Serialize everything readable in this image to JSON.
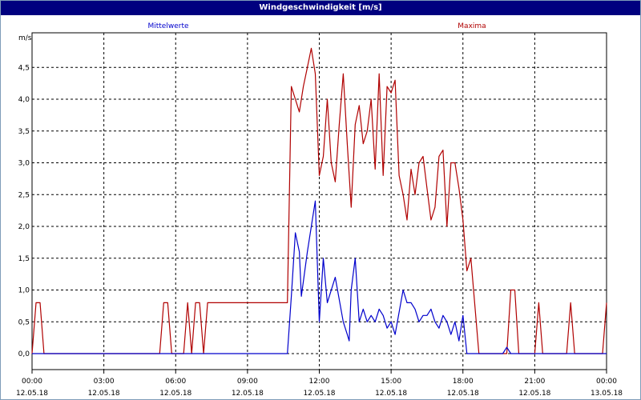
{
  "window": {
    "title": "Windgeschwindigkeit [m/s]"
  },
  "chart_data": {
    "type": "line",
    "unit_label": "m/s",
    "ylim": [
      0,
      5
    ],
    "yticks": [
      {
        "value": 0.0,
        "label": "0,0"
      },
      {
        "value": 0.5,
        "label": "0,5"
      },
      {
        "value": 1.0,
        "label": "1,0"
      },
      {
        "value": 1.5,
        "label": "1,5"
      },
      {
        "value": 2.0,
        "label": "2,0"
      },
      {
        "value": 2.5,
        "label": "2,5"
      },
      {
        "value": 3.0,
        "label": "3,0"
      },
      {
        "value": 3.5,
        "label": "3,5"
      },
      {
        "value": 4.0,
        "label": "4,0"
      },
      {
        "value": 4.5,
        "label": "4,5"
      }
    ],
    "xlim": [
      "12.05.18 00:00",
      "13.05.18 00:00"
    ],
    "xticks": [
      {
        "time": "00:00",
        "date": "12.05.18"
      },
      {
        "time": "03:00",
        "date": "12.05.18"
      },
      {
        "time": "06:00",
        "date": "12.05.18"
      },
      {
        "time": "09:00",
        "date": "12.05.18"
      },
      {
        "time": "12:00",
        "date": "12.05.18"
      },
      {
        "time": "15:00",
        "date": "12.05.18"
      },
      {
        "time": "18:00",
        "date": "12.05.18"
      },
      {
        "time": "21:00",
        "date": "12.05.18"
      },
      {
        "time": "00:00",
        "date": "13.05.18"
      }
    ],
    "grid": true,
    "series": [
      {
        "name": "Mittelwerte",
        "color": "#0000cc",
        "points": [
          [
            "00:00",
            0
          ],
          [
            "10:40",
            0
          ],
          [
            "10:50",
            0.9
          ],
          [
            "11:00",
            1.9
          ],
          [
            "11:10",
            1.6
          ],
          [
            "11:15",
            0.9
          ],
          [
            "11:30",
            1.6
          ],
          [
            "11:45",
            2.2
          ],
          [
            "11:50",
            2.4
          ],
          [
            "12:00",
            0.5
          ],
          [
            "12:10",
            1.5
          ],
          [
            "12:20",
            0.8
          ],
          [
            "12:40",
            1.2
          ],
          [
            "13:00",
            0.5
          ],
          [
            "13:10",
            0.3
          ],
          [
            "13:15",
            0.2
          ],
          [
            "13:20",
            1.0
          ],
          [
            "13:30",
            1.5
          ],
          [
            "13:40",
            0.5
          ],
          [
            "13:50",
            0.7
          ],
          [
            "14:00",
            0.5
          ],
          [
            "14:10",
            0.6
          ],
          [
            "14:20",
            0.5
          ],
          [
            "14:30",
            0.7
          ],
          [
            "14:40",
            0.6
          ],
          [
            "14:50",
            0.4
          ],
          [
            "15:00",
            0.5
          ],
          [
            "15:10",
            0.3
          ],
          [
            "15:30",
            1.0
          ],
          [
            "15:40",
            0.8
          ],
          [
            "15:50",
            0.8
          ],
          [
            "16:00",
            0.7
          ],
          [
            "16:10",
            0.5
          ],
          [
            "16:20",
            0.6
          ],
          [
            "16:30",
            0.6
          ],
          [
            "16:40",
            0.7
          ],
          [
            "16:50",
            0.5
          ],
          [
            "17:00",
            0.4
          ],
          [
            "17:10",
            0.6
          ],
          [
            "17:20",
            0.5
          ],
          [
            "17:30",
            0.3
          ],
          [
            "17:40",
            0.5
          ],
          [
            "17:50",
            0.2
          ],
          [
            "18:00",
            0.6
          ],
          [
            "18:10",
            0.0
          ],
          [
            "19:40",
            0.0
          ],
          [
            "19:50",
            0.1
          ],
          [
            "20:00",
            0.0
          ],
          [
            "24:00",
            0.0
          ]
        ]
      },
      {
        "name": "Maxima",
        "color": "#b00000",
        "points": [
          [
            "00:00",
            0
          ],
          [
            "00:10",
            0.8
          ],
          [
            "00:20",
            0.8
          ],
          [
            "00:30",
            0
          ],
          [
            "05:20",
            0
          ],
          [
            "05:30",
            0.8
          ],
          [
            "05:40",
            0.8
          ],
          [
            "05:50",
            0
          ],
          [
            "06:20",
            0
          ],
          [
            "06:30",
            0.8
          ],
          [
            "06:40",
            0
          ],
          [
            "06:50",
            0.8
          ],
          [
            "07:00",
            0.8
          ],
          [
            "07:10",
            0
          ],
          [
            "07:20",
            0.8
          ],
          [
            "10:40",
            0.8
          ],
          [
            "10:50",
            4.2
          ],
          [
            "11:00",
            4.0
          ],
          [
            "11:10",
            3.8
          ],
          [
            "11:20",
            4.2
          ],
          [
            "11:30",
            4.5
          ],
          [
            "11:40",
            4.8
          ],
          [
            "11:50",
            4.4
          ],
          [
            "12:00",
            2.8
          ],
          [
            "12:10",
            3.1
          ],
          [
            "12:20",
            4.0
          ],
          [
            "12:30",
            3.0
          ],
          [
            "12:40",
            2.7
          ],
          [
            "12:50",
            3.6
          ],
          [
            "13:00",
            4.4
          ],
          [
            "13:10",
            3.3
          ],
          [
            "13:20",
            2.3
          ],
          [
            "13:30",
            3.6
          ],
          [
            "13:40",
            3.9
          ],
          [
            "13:50",
            3.3
          ],
          [
            "14:00",
            3.5
          ],
          [
            "14:10",
            4.0
          ],
          [
            "14:20",
            2.9
          ],
          [
            "14:30",
            4.4
          ],
          [
            "14:40",
            2.8
          ],
          [
            "14:50",
            4.2
          ],
          [
            "15:00",
            4.1
          ],
          [
            "15:10",
            4.3
          ],
          [
            "15:20",
            2.8
          ],
          [
            "15:30",
            2.5
          ],
          [
            "15:40",
            2.1
          ],
          [
            "15:50",
            2.9
          ],
          [
            "16:00",
            2.5
          ],
          [
            "16:10",
            3.0
          ],
          [
            "16:20",
            3.1
          ],
          [
            "16:30",
            2.6
          ],
          [
            "16:40",
            2.1
          ],
          [
            "16:50",
            2.3
          ],
          [
            "17:00",
            3.1
          ],
          [
            "17:10",
            3.2
          ],
          [
            "17:20",
            2.0
          ],
          [
            "17:30",
            3.0
          ],
          [
            "17:40",
            3.0
          ],
          [
            "17:50",
            2.6
          ],
          [
            "18:00",
            2.1
          ],
          [
            "18:10",
            1.3
          ],
          [
            "18:20",
            1.5
          ],
          [
            "18:40",
            0
          ],
          [
            "19:50",
            0
          ],
          [
            "20:00",
            1.0
          ],
          [
            "20:10",
            1.0
          ],
          [
            "20:20",
            0
          ],
          [
            "21:00",
            0
          ],
          [
            "21:10",
            0.8
          ],
          [
            "21:20",
            0
          ],
          [
            "22:20",
            0
          ],
          [
            "22:30",
            0.8
          ],
          [
            "22:40",
            0
          ],
          [
            "23:50",
            0
          ],
          [
            "24:00",
            0.8
          ]
        ]
      }
    ]
  }
}
